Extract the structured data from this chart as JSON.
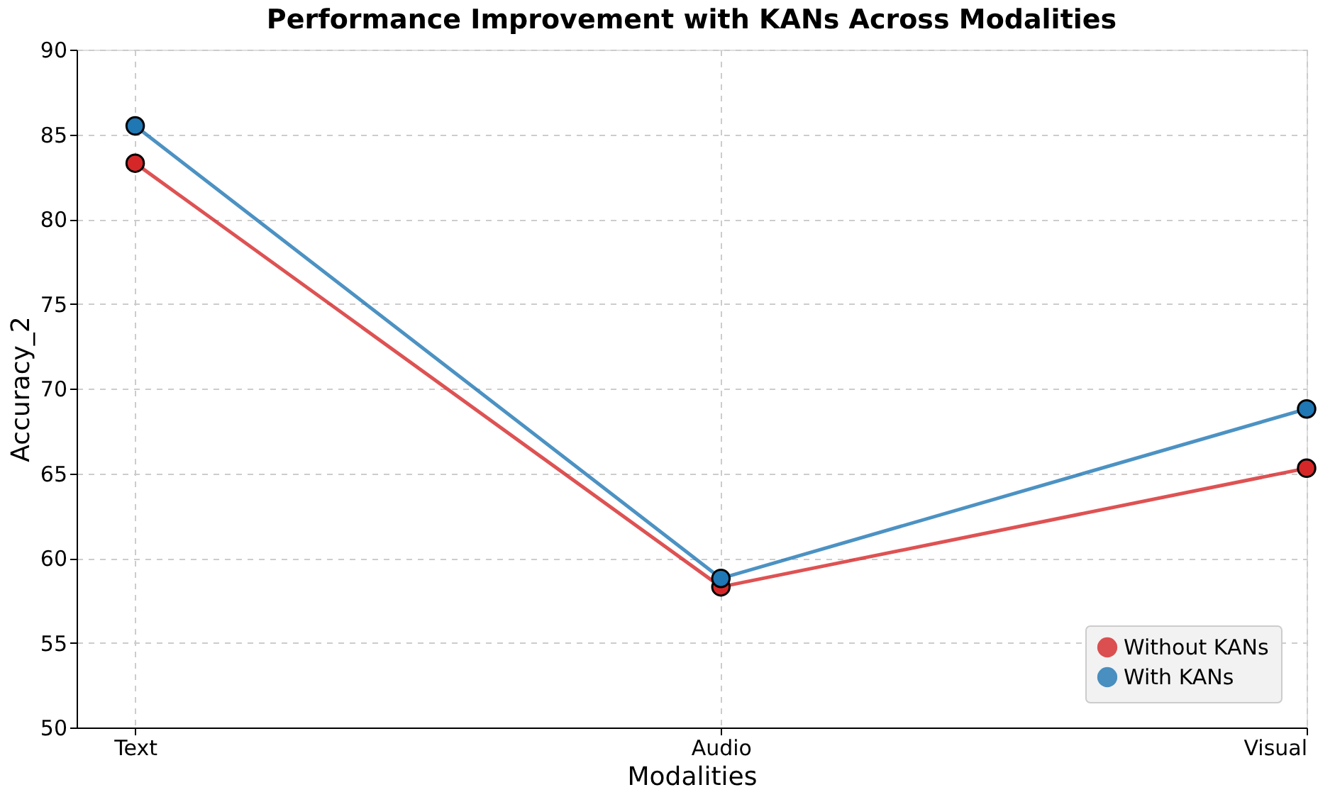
{
  "chart_data": {
    "type": "line",
    "title": "Performance Improvement with KANs Across Modalities",
    "xlabel": "Modalities",
    "ylabel": "Accuracy_2",
    "categories": [
      "Text",
      "Audio",
      "Visual"
    ],
    "series": [
      {
        "name": "Without KANs",
        "color": "#d62728",
        "values": [
          83.3,
          58.3,
          65.3
        ]
      },
      {
        "name": "With KANs",
        "color": "#1f77b4",
        "values": [
          85.5,
          58.8,
          68.8
        ]
      }
    ],
    "ylim": [
      50,
      90
    ],
    "yticks": [
      50,
      55,
      60,
      65,
      70,
      75,
      80,
      85,
      90
    ],
    "grid": true,
    "legend": "bottom right",
    "marker": "circle",
    "line_style": "solid"
  }
}
